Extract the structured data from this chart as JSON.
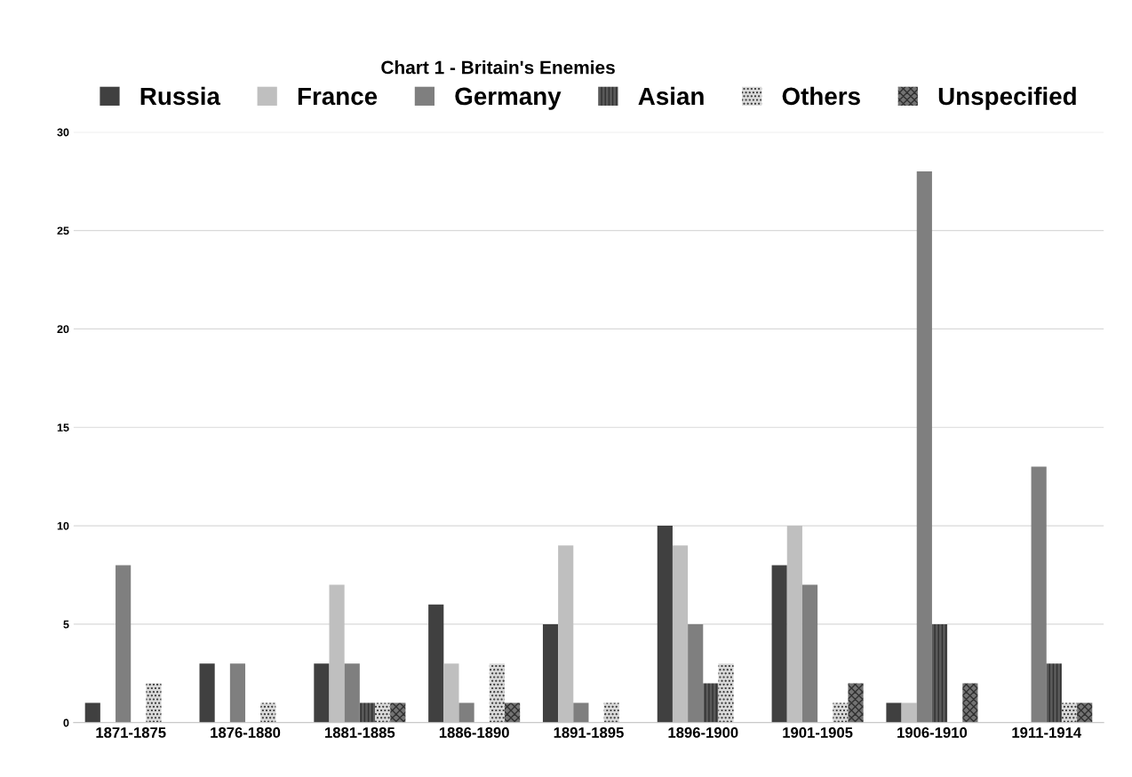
{
  "chart_data": {
    "type": "bar",
    "title": "Chart 1 - Britain's Enemies",
    "categories": [
      "1871-1875",
      "1876-1880",
      "1881-1885",
      "1886-1890",
      "1891-1895",
      "1896-1900",
      "1901-1905",
      "1906-1910",
      "1911-1914"
    ],
    "series": [
      {
        "name": "Russia",
        "color": "#404040",
        "values": [
          1,
          3,
          3,
          6,
          5,
          10,
          8,
          1,
          0
        ]
      },
      {
        "name": "France",
        "color": "#bfbfbf",
        "values": [
          0,
          0,
          7,
          3,
          9,
          9,
          10,
          1,
          0
        ]
      },
      {
        "name": "Germany",
        "color": "#7f7f7f",
        "values": [
          8,
          3,
          3,
          1,
          1,
          5,
          7,
          28,
          13
        ]
      },
      {
        "name": "Asian",
        "color": "#595959",
        "values": [
          0,
          0,
          1,
          0,
          0,
          2,
          0,
          5,
          3
        ]
      },
      {
        "name": "Others",
        "color": "#d9d9d9",
        "values": [
          2,
          1,
          1,
          3,
          1,
          3,
          1,
          0,
          1
        ]
      },
      {
        "name": "Unspecified",
        "color": "#737373",
        "values": [
          0,
          0,
          1,
          1,
          0,
          0,
          2,
          2,
          1
        ]
      }
    ],
    "ylim": [
      0,
      30
    ],
    "yticks": [
      0,
      5,
      10,
      15,
      20,
      25,
      30
    ],
    "grid": "y",
    "legend": "top"
  }
}
